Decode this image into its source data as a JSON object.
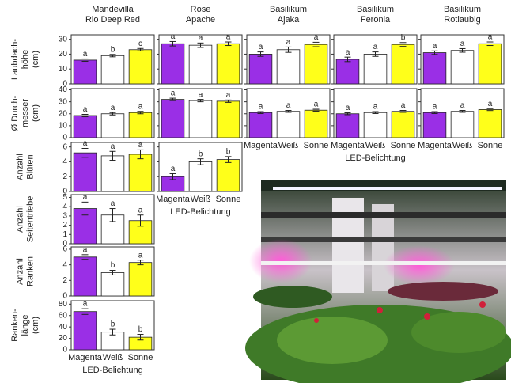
{
  "figure": {
    "column_titles": [
      [
        "Mandevilla",
        "Rio Deep Red"
      ],
      [
        "Rose",
        "Apache"
      ],
      [
        "Basilikum",
        "Ajaka"
      ],
      [
        "Basilikum",
        "Feronia"
      ],
      [
        "Basilikum",
        "Rotlaubig"
      ]
    ],
    "row_labels": [
      [
        "Laubdach-",
        "höhe",
        "(cm)"
      ],
      [
        "Ø Durch-",
        "messer",
        "(cm)"
      ],
      [
        "Anzahl",
        "Blüten"
      ],
      [
        "Anzahl",
        "Seitentriebe"
      ],
      [
        "Anzahl",
        "Ranken"
      ],
      [
        "Ranken-",
        "länge",
        "(cm)"
      ]
    ],
    "xlabel": "LED-Belichtung"
  },
  "chart_data": [
    {
      "type": "bar",
      "categories": [
        "Magenta",
        "Weiß",
        "Sonne"
      ],
      "colors": [
        "#9a2fe6",
        "#ffffff",
        "#ffff1a"
      ],
      "values": [
        16,
        19,
        23
      ],
      "errors": [
        0.8,
        0.8,
        0.8
      ],
      "letters": [
        "a",
        "b",
        "c"
      ],
      "ylim": [
        0,
        33
      ],
      "yticks": [
        0,
        10,
        20,
        30
      ]
    },
    {
      "type": "bar",
      "categories": [
        "Magenta",
        "Weiß",
        "Sonne"
      ],
      "colors": [
        "#9a2fe6",
        "#ffffff",
        "#ffff1a"
      ],
      "values": [
        27,
        26,
        27
      ],
      "errors": [
        1.5,
        1.5,
        1.2
      ],
      "letters": [
        "a",
        "a",
        "a"
      ],
      "ylim": [
        0,
        33
      ],
      "yticks": [
        0,
        10,
        20,
        30
      ]
    },
    {
      "type": "bar",
      "categories": [
        "Magenta",
        "Weiß",
        "Sonne"
      ],
      "colors": [
        "#9a2fe6",
        "#ffffff",
        "#ffff1a"
      ],
      "values": [
        20,
        23,
        26.5
      ],
      "errors": [
        1.5,
        1.8,
        1.5
      ],
      "letters": [
        "a",
        "a",
        "a"
      ],
      "ylim": [
        0,
        33
      ],
      "yticks": [
        0,
        10,
        20,
        30
      ]
    },
    {
      "type": "bar",
      "categories": [
        "Magenta",
        "Weiß",
        "Sonne"
      ],
      "colors": [
        "#9a2fe6",
        "#ffffff",
        "#ffff1a"
      ],
      "values": [
        16.5,
        20,
        26.5
      ],
      "errors": [
        1.5,
        1.5,
        1.3
      ],
      "letters": [
        "a",
        "a",
        "b"
      ],
      "ylim": [
        0,
        33
      ],
      "yticks": [
        0,
        10,
        20,
        30
      ]
    },
    {
      "type": "bar",
      "categories": [
        "Magenta",
        "Weiß",
        "Sonne"
      ],
      "colors": [
        "#9a2fe6",
        "#ffffff",
        "#ffff1a"
      ],
      "values": [
        21,
        22.5,
        27
      ],
      "errors": [
        1.2,
        1.2,
        1.2
      ],
      "letters": [
        "a",
        "a",
        "a"
      ],
      "ylim": [
        0,
        33
      ],
      "yticks": [
        0,
        10,
        20,
        30
      ]
    },
    {
      "type": "bar",
      "categories": [
        "Magenta",
        "Weiß",
        "Sonne"
      ],
      "colors": [
        "#9a2fe6",
        "#ffffff",
        "#ffff1a"
      ],
      "values": [
        18.5,
        20,
        21
      ],
      "errors": [
        1,
        1,
        1
      ],
      "letters": [
        "a",
        "a",
        "a"
      ],
      "ylim": [
        0,
        41
      ],
      "yticks": [
        0,
        10,
        20,
        30,
        40
      ]
    },
    {
      "type": "bar",
      "categories": [
        "Magenta",
        "Weiß",
        "Sonne"
      ],
      "colors": [
        "#9a2fe6",
        "#ffffff",
        "#ffff1a"
      ],
      "values": [
        32,
        31,
        30.5
      ],
      "errors": [
        1,
        1,
        1
      ],
      "letters": [
        "a",
        "a",
        "a"
      ],
      "ylim": [
        0,
        41
      ],
      "yticks": [
        0,
        10,
        20,
        30,
        40
      ]
    },
    {
      "type": "bar",
      "categories": [
        "Magenta",
        "Weiß",
        "Sonne"
      ],
      "colors": [
        "#9a2fe6",
        "#ffffff",
        "#ffff1a"
      ],
      "values": [
        21,
        22,
        23
      ],
      "errors": [
        0.8,
        0.8,
        0.8
      ],
      "letters": [
        "a",
        "a",
        "a"
      ],
      "ylim": [
        0,
        41
      ],
      "yticks": [
        0,
        10,
        20,
        30,
        40
      ]
    },
    {
      "type": "bar",
      "categories": [
        "Magenta",
        "Weiß",
        "Sonne"
      ],
      "colors": [
        "#9a2fe6",
        "#ffffff",
        "#ffff1a"
      ],
      "values": [
        20,
        21,
        22
      ],
      "errors": [
        0.8,
        0.8,
        0.8
      ],
      "letters": [
        "a",
        "a",
        "a"
      ],
      "ylim": [
        0,
        41
      ],
      "yticks": [
        0,
        10,
        20,
        30,
        40
      ]
    },
    {
      "type": "bar",
      "categories": [
        "Magenta",
        "Weiß",
        "Sonne"
      ],
      "colors": [
        "#9a2fe6",
        "#ffffff",
        "#ffff1a"
      ],
      "values": [
        21,
        22,
        23.5
      ],
      "errors": [
        0.8,
        0.8,
        0.8
      ],
      "letters": [
        "a",
        "a",
        "a"
      ],
      "ylim": [
        0,
        41
      ],
      "yticks": [
        0,
        10,
        20,
        30,
        40
      ]
    },
    {
      "type": "bar",
      "categories": [
        "Magenta",
        "Weiß",
        "Sonne"
      ],
      "colors": [
        "#9a2fe6",
        "#ffffff",
        "#ffff1a"
      ],
      "values": [
        5.2,
        4.8,
        5.0
      ],
      "errors": [
        0.6,
        0.6,
        0.6
      ],
      "letters": [
        "a",
        "a",
        "a"
      ],
      "ylim": [
        0,
        6.6
      ],
      "yticks": [
        0,
        2,
        4,
        6
      ]
    },
    {
      "type": "bar",
      "categories": [
        "Magenta",
        "Weiß",
        "Sonne"
      ],
      "colors": [
        "#9a2fe6",
        "#ffffff",
        "#ffff1a"
      ],
      "values": [
        2.0,
        4.0,
        4.3
      ],
      "errors": [
        0.4,
        0.4,
        0.4
      ],
      "letters": [
        "a",
        "b",
        "b"
      ],
      "ylim": [
        0,
        6.6
      ],
      "yticks": [
        0,
        2,
        4,
        6
      ]
    },
    {
      "type": "bar",
      "categories": [
        "Magenta",
        "Weiß",
        "Sonne"
      ],
      "colors": [
        "#9a2fe6",
        "#ffffff",
        "#ffff1a"
      ],
      "values": [
        3.8,
        3.1,
        2.5
      ],
      "errors": [
        0.7,
        0.7,
        0.6
      ],
      "letters": [
        "a",
        "a",
        "a"
      ],
      "ylim": [
        0,
        5.3
      ],
      "yticks": [
        0,
        1,
        2,
        3,
        4,
        5
      ]
    },
    {
      "type": "bar",
      "categories": [
        "Magenta",
        "Weiß",
        "Sonne"
      ],
      "colors": [
        "#9a2fe6",
        "#ffffff",
        "#ffff1a"
      ],
      "values": [
        5.0,
        3.0,
        4.3
      ],
      "errors": [
        0.3,
        0.3,
        0.3
      ],
      "letters": [
        "a",
        "b",
        "a"
      ],
      "ylim": [
        0,
        6.3
      ],
      "yticks": [
        0,
        2,
        4,
        6
      ]
    },
    {
      "type": "bar",
      "categories": [
        "Magenta",
        "Weiß",
        "Sonne"
      ],
      "colors": [
        "#9a2fe6",
        "#ffffff",
        "#ffff1a"
      ],
      "values": [
        67,
        31,
        22
      ],
      "errors": [
        5,
        5,
        5
      ],
      "letters": [
        "a",
        "b",
        "b"
      ],
      "ylim": [
        0,
        86
      ],
      "yticks": [
        0,
        20,
        40,
        60,
        80
      ]
    }
  ]
}
